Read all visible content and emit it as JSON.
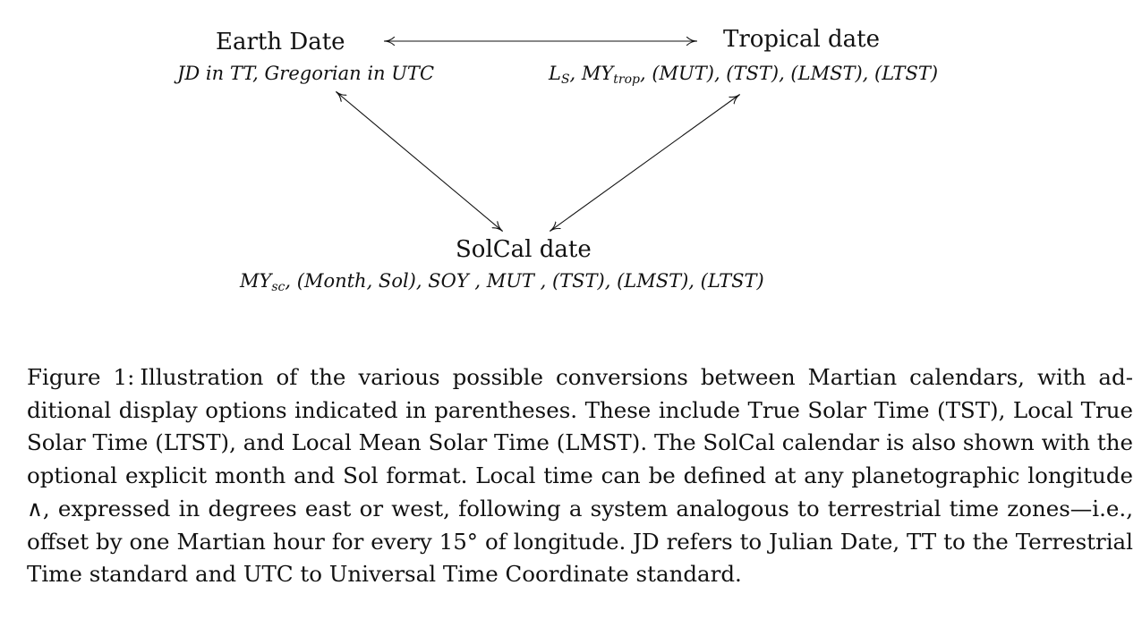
{
  "diagram": {
    "nodes": {
      "earth": {
        "title": "Earth Date",
        "subtitle": "JD in TT, Gregorian in UTC"
      },
      "tropical": {
        "title": "Tropical date",
        "subtitle_parts": {
          "ls_main": "L",
          "ls_sub": "S",
          "sep1": ", ",
          "my_main": "MY",
          "my_sub": "trop",
          "rest": ", (MUT), (TST), (LMST), (LTST)"
        }
      },
      "solcal": {
        "title": "SolCal date",
        "subtitle_parts": {
          "my_main": "MY",
          "my_sub": "sc",
          "rest": ", (Month, Sol), SOY , MUT , (TST), (LMST), (LTST)"
        }
      }
    },
    "edges": [
      {
        "from": "earth",
        "to": "tropical",
        "direction": "bidirectional"
      },
      {
        "from": "earth",
        "to": "solcal",
        "direction": "bidirectional"
      },
      {
        "from": "tropical",
        "to": "solcal",
        "direction": "bidirectional"
      }
    ]
  },
  "caption": {
    "label": "Figure 1:",
    "text": "Illustration of the various possible conversions between Martian calendars, with ad­ditional display options indicated in parentheses. These include True Solar Time (TST), Local True Solar Time (LTST), and Local Mean Solar Time (LMST). The SolCal calendar is also shown with the optional explicit month and Sol format.  Local time can be defined at any planetographic longitude ∧, expressed in degrees east or west, following a system analogous to terrestrial time zones—i.e., offset by one Martian hour for every 15° of longitude.  JD refers to Julian Date, TT to the Terrestrial Time standard and UTC to Universal Time Coordinate standard."
  }
}
